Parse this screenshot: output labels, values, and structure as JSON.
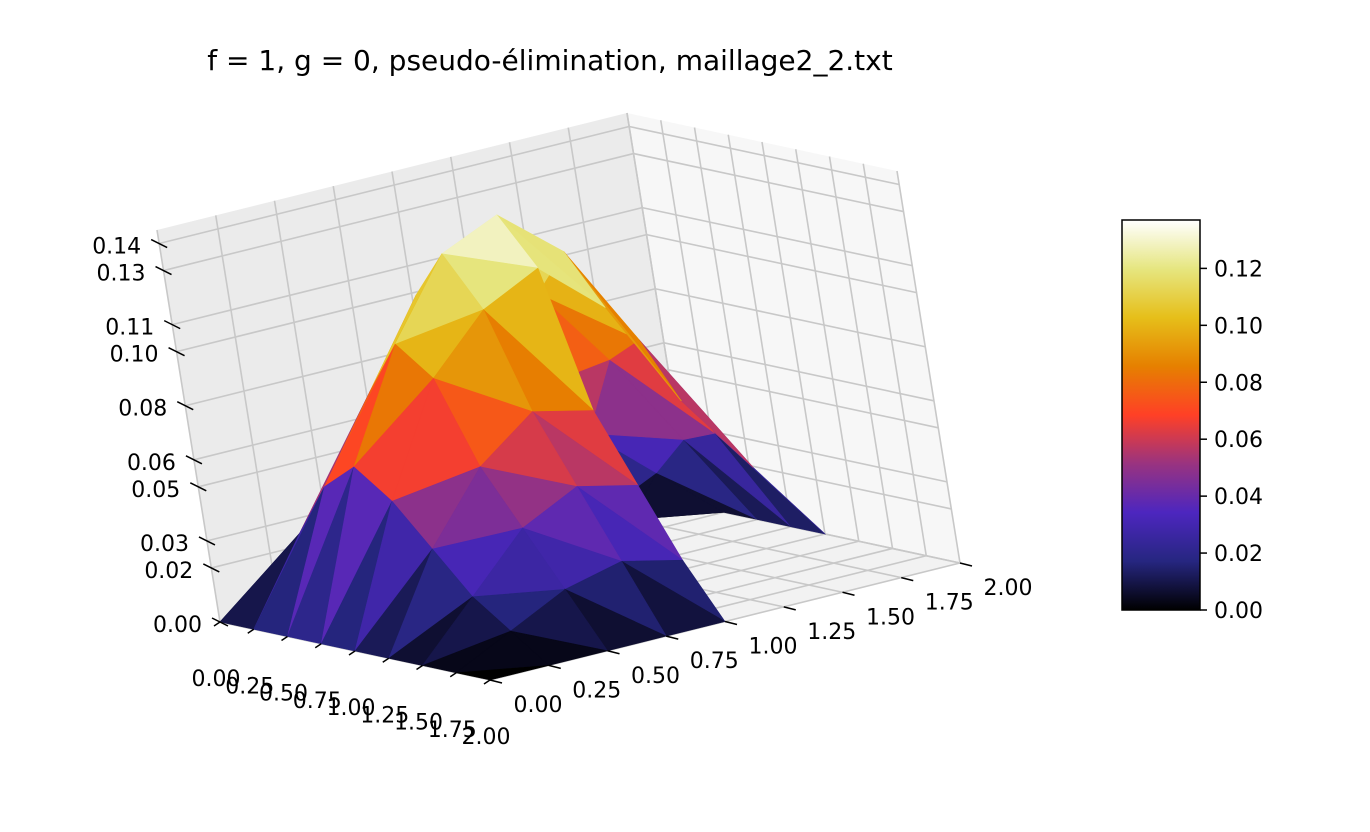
{
  "chart_data": {
    "type": "surface",
    "title": "f = 1, g = 0, pseudo-élimination, maillage2_2.txt",
    "colormap": "CMRmap",
    "x_ticks": [
      "0.00",
      "0.25",
      "0.50",
      "0.75",
      "1.00",
      "1.25",
      "1.50",
      "1.75",
      "2.00"
    ],
    "y_ticks": [
      "0.00",
      "0.25",
      "0.50",
      "0.75",
      "1.00",
      "1.25",
      "1.50",
      "1.75",
      "2.00"
    ],
    "z_ticks": [
      "0.00",
      "0.02",
      "0.03",
      "0.05",
      "0.06",
      "0.08",
      "0.10",
      "0.11",
      "0.13",
      "0.14"
    ],
    "colorbar_ticks": [
      "0.00",
      "0.02",
      "0.04",
      "0.06",
      "0.08",
      "0.10",
      "0.12"
    ],
    "xlim": [
      0,
      2
    ],
    "ylim": [
      0,
      2
    ],
    "zlim": [
      0,
      0.145
    ],
    "colorbar_range": [
      0,
      0.137
    ],
    "domain": "L-shaped: [0,2]x[0,1] union [0,1]x[1,2]",
    "grid_x": [
      0,
      0.25,
      0.5,
      0.75,
      1.0,
      1.25,
      1.5,
      1.75,
      2.0
    ],
    "grid_y": [
      0,
      0.25,
      0.5,
      0.75,
      1.0,
      1.25,
      1.5,
      1.75,
      2.0
    ],
    "z_values": [
      [
        0.0,
        0.0,
        0.0,
        0.0,
        0.0,
        0.0,
        0.0,
        0.0,
        0.0
      ],
      [
        0.0,
        0.03,
        0.05,
        0.07,
        0.08,
        0.06,
        0.04,
        0.02,
        0.0
      ],
      [
        0.0,
        0.05,
        0.08,
        0.11,
        0.12,
        0.1,
        0.07,
        0.035,
        0.0
      ],
      [
        0.0,
        0.06,
        0.1,
        0.128,
        0.137,
        0.118,
        0.08,
        0.04,
        0.0
      ],
      [
        0.0,
        0.05,
        0.09,
        0.11,
        0.12,
        0.1,
        0.06,
        0.03,
        0.0
      ],
      [
        0.0,
        0.035,
        0.06,
        0.075,
        0.07,
        null,
        null,
        null,
        null
      ],
      [
        0.0,
        0.02,
        0.04,
        0.05,
        0.045,
        null,
        null,
        null,
        null
      ],
      [
        0.0,
        0.01,
        0.02,
        0.025,
        0.02,
        null,
        null,
        null,
        null
      ],
      [
        0.0,
        0.0,
        0.0,
        0.0,
        0.0,
        null,
        null,
        null,
        null
      ]
    ],
    "grid": true,
    "colorbar": true,
    "colorbar_position": "right"
  }
}
